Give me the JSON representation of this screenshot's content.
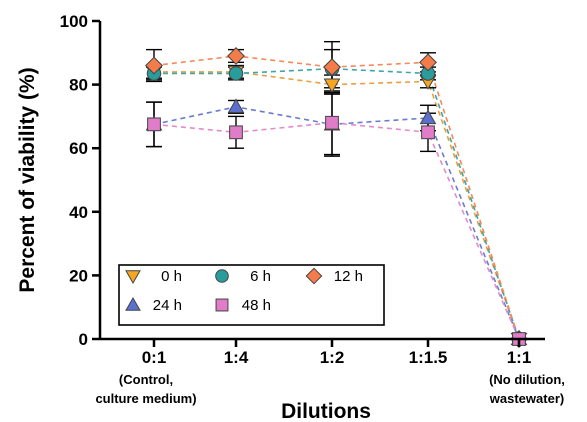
{
  "chart_data": {
    "type": "line",
    "title": "",
    "xlabel": "Dilutions",
    "ylabel": "Percent of viability (%)",
    "ylim": [
      0,
      100
    ],
    "yticks": [
      0,
      20,
      40,
      60,
      80,
      100
    ],
    "categories": [
      "0:1",
      "1:4",
      "1:2",
      "1:1.5",
      "1:1"
    ],
    "category_sublabels": [
      [
        "(Control,",
        "culture medium)"
      ],
      [],
      [],
      [],
      [
        "(No dilution,",
        "wastewater)"
      ]
    ],
    "grid": false,
    "legend_position": "bottom-left",
    "series": [
      {
        "name": "0 h",
        "marker": "triangle-down",
        "color": "#F5A623",
        "line_color": "#E8A040",
        "values": [
          84,
          84,
          80,
          81,
          0
        ],
        "errors": [
          2,
          2,
          3,
          2,
          0
        ]
      },
      {
        "name": "6 h",
        "marker": "circle",
        "color": "#2A9C9C",
        "line_color": "#3FA6A6",
        "values": [
          83.5,
          83.5,
          85,
          83.5,
          0
        ],
        "errors": [
          2,
          2,
          6,
          2,
          0
        ]
      },
      {
        "name": "12 h",
        "marker": "diamond",
        "color": "#F47B4A",
        "line_color": "#F28A5C",
        "values": [
          86,
          89,
          85.5,
          87,
          0
        ],
        "errors": [
          5,
          2,
          8,
          3,
          0
        ]
      },
      {
        "name": "24 h",
        "marker": "triangle-up",
        "color": "#5B6FD0",
        "line_color": "#6A7CD0",
        "values": [
          67.5,
          73,
          67.5,
          69.5,
          0
        ],
        "errors": [
          7,
          2,
          10,
          4,
          0
        ]
      },
      {
        "name": "48 h",
        "marker": "square",
        "color": "#E07CC8",
        "line_color": "#E38BCB",
        "values": [
          67.5,
          65,
          68,
          65,
          0
        ],
        "errors": [
          7,
          5,
          10,
          6,
          0
        ]
      }
    ]
  }
}
